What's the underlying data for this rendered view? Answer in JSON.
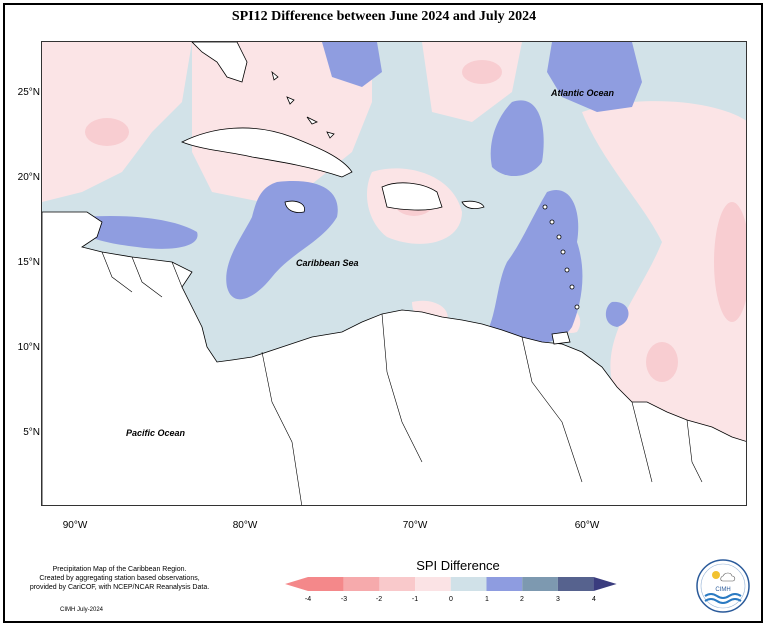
{
  "title": "SPI12 Difference between June 2024 and July 2024",
  "axes": {
    "y_ticks": [
      "25°N",
      "20°N",
      "15°N",
      "10°N",
      "5°N"
    ],
    "x_ticks": [
      "90°W",
      "80°W",
      "70°W",
      "60°W"
    ]
  },
  "labels": {
    "atlantic": "Atlantic Ocean",
    "caribbean": "Caribbean Sea",
    "pacific": "Pacific Ocean"
  },
  "credit": {
    "line1": "Precipitation Map of the Caribbean Region.",
    "line2": "Created by aggregating station based observations,",
    "line3": "provided by CariCOF, with NCEP/NCAR Reanalysis Data.",
    "short": "CIMH July-2024"
  },
  "legend": {
    "title": "SPI Difference",
    "ticks": [
      "-4",
      "-3",
      "-2",
      "-1",
      "0",
      "1",
      "2",
      "3",
      "4"
    ],
    "colors": [
      "#f4888a",
      "#f6aaac",
      "#f9c9cb",
      "#fbe3e5",
      "#d0e1e8",
      "#8e9ce0",
      "#7d99b0",
      "#56628e",
      "#3a3c7e"
    ]
  },
  "logo": {
    "text": "CIMH"
  }
}
